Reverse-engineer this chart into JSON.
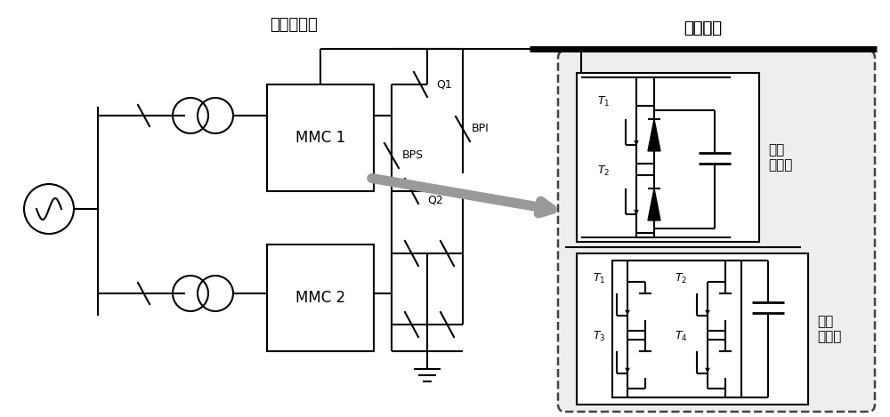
{
  "title_left": "送端换流站",
  "title_right": "直流线路",
  "label_MMC1": "MMC 1",
  "label_MMC2": "MMC 2",
  "label_HB": "半桥\n子模块",
  "label_FB": "全桥\n子模块",
  "label_Q1": "Q1",
  "label_Q2": "Q2",
  "label_BPS": "BPS",
  "label_BPI": "BPI",
  "label_T1": "$T_1$",
  "label_T2": "$T_2$",
  "label_T3": "$T_3$",
  "label_T4": "$T_4$",
  "bg_color": "#ffffff",
  "line_color": "#000000",
  "figsize": [
    10.0,
    4.69
  ],
  "dpi": 100
}
